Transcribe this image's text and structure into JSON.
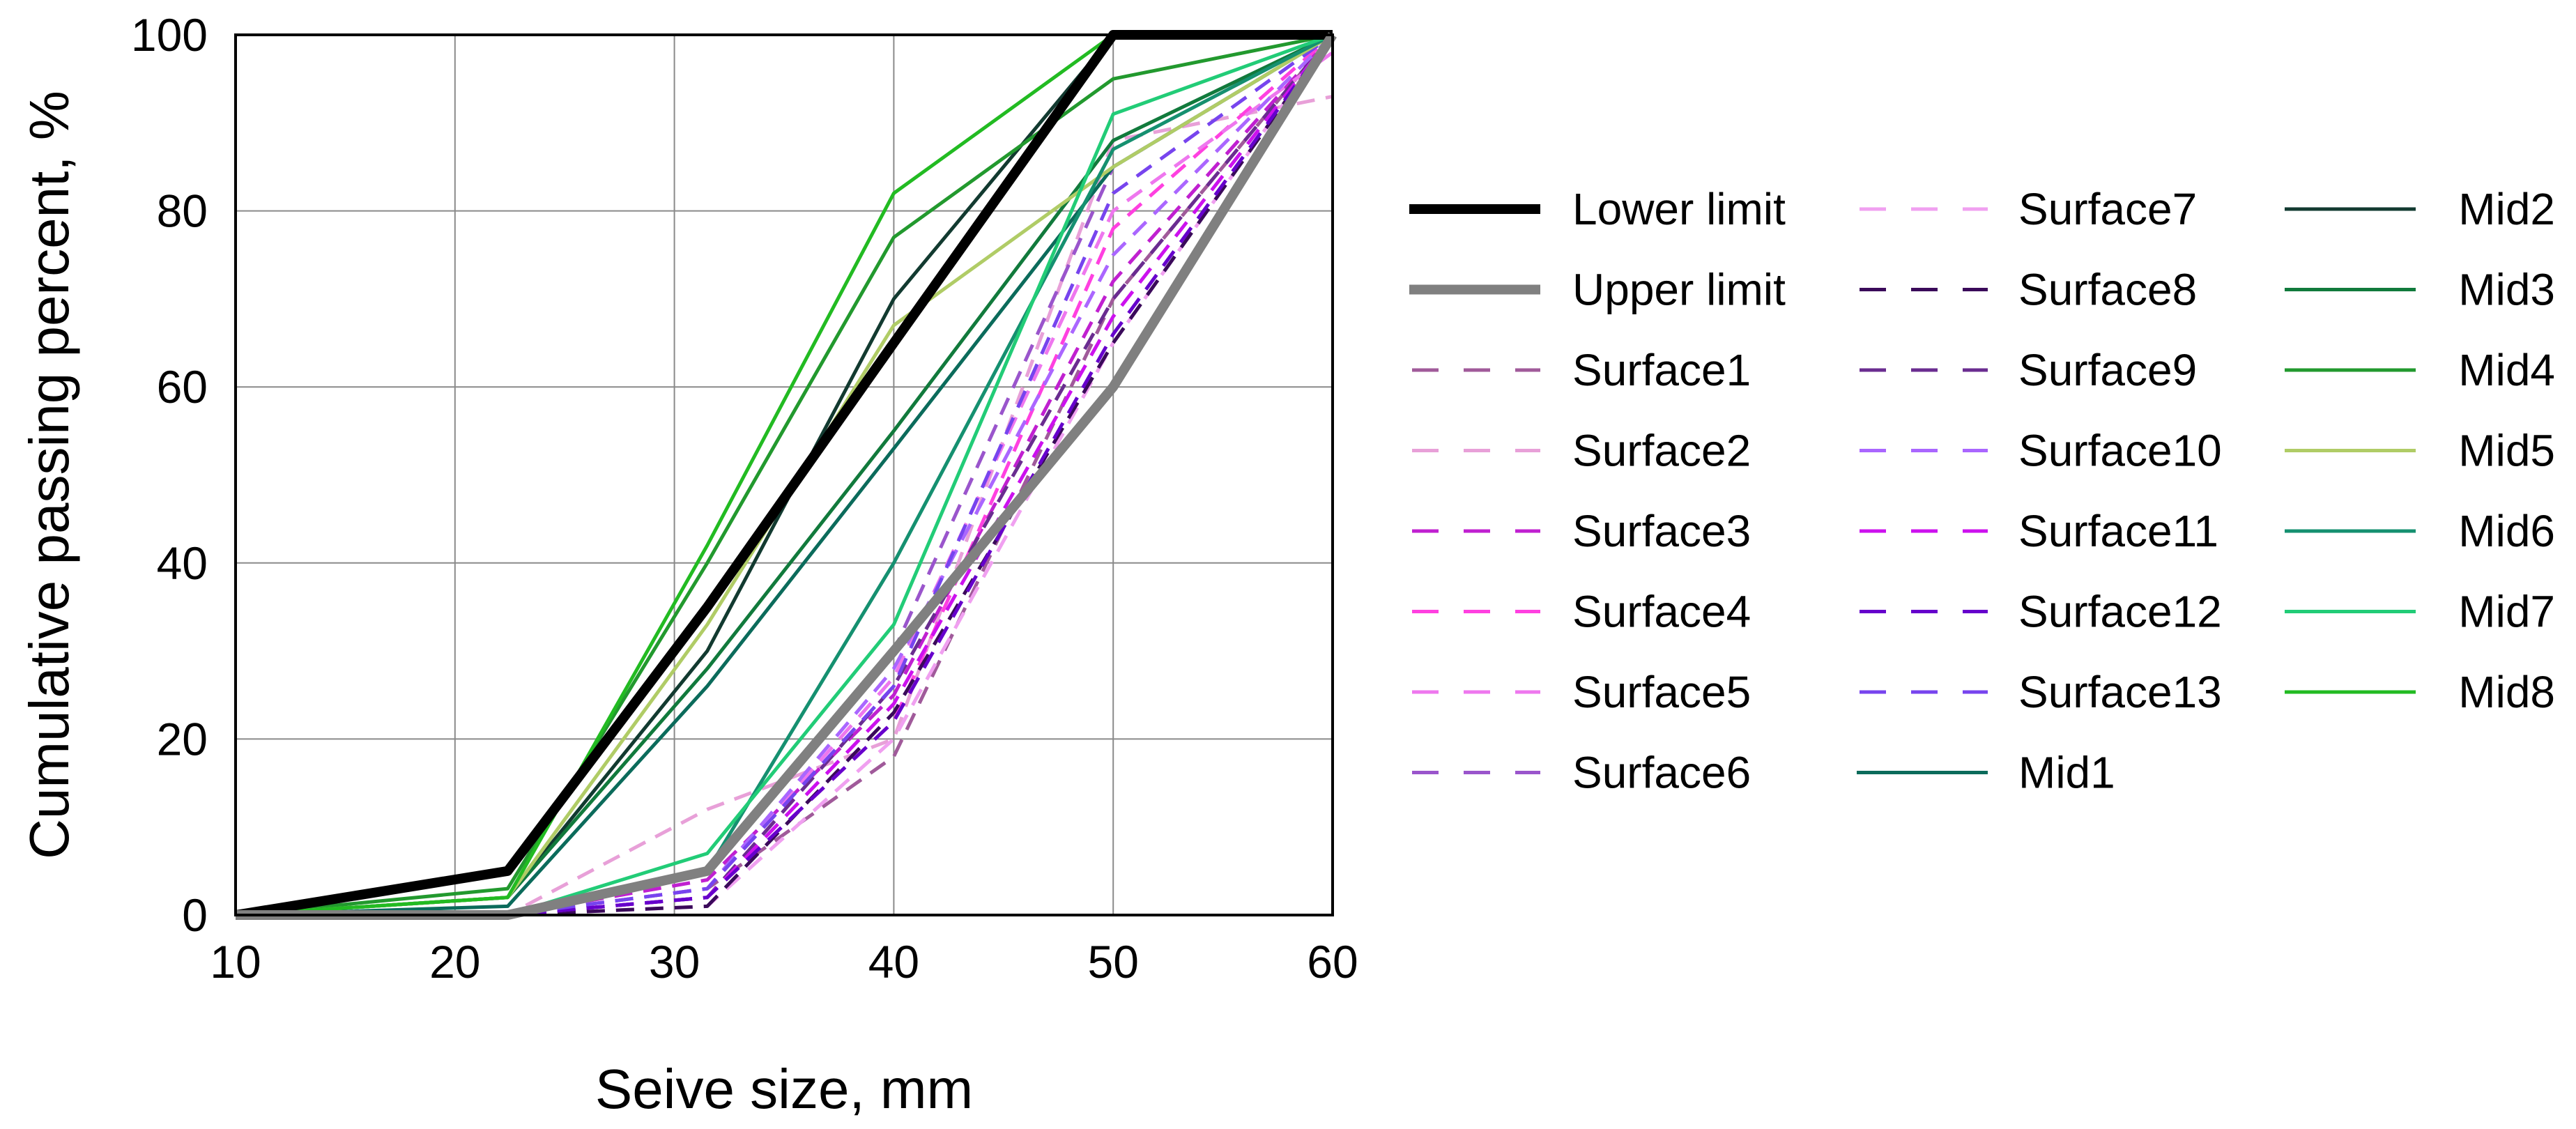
{
  "chart_data": {
    "type": "line",
    "title": "",
    "xlabel": "Seive size, mm",
    "ylabel": "Cumulative passing percent, %",
    "xlim": [
      10,
      60
    ],
    "ylim": [
      0,
      100
    ],
    "xticks": [
      10,
      20,
      30,
      40,
      50,
      60
    ],
    "yticks": [
      0,
      20,
      40,
      60,
      80,
      100
    ],
    "grid": true,
    "legend_position": "right",
    "x": [
      10,
      22.4,
      31.5,
      40,
      50,
      60
    ],
    "series": [
      {
        "name": "Lower limit",
        "color": "#000000",
        "style": "solid",
        "weight": "heavy",
        "values": [
          0,
          5,
          35,
          65,
          100,
          100
        ]
      },
      {
        "name": "Upper limit",
        "color": "#808080",
        "style": "solid",
        "weight": "heavy",
        "values": [
          0,
          0,
          5,
          30,
          60,
          100
        ]
      },
      {
        "name": "Surface1",
        "color": "#a05a9a",
        "style": "dashed",
        "weight": "normal",
        "values": [
          0,
          0,
          3,
          18,
          70,
          100
        ]
      },
      {
        "name": "Surface2",
        "color": "#e8a0d8",
        "style": "dashed",
        "weight": "normal",
        "values": [
          0,
          0,
          12,
          20,
          88,
          93
        ]
      },
      {
        "name": "Surface3",
        "color": "#c020d0",
        "style": "dashed",
        "weight": "normal",
        "values": [
          0,
          0,
          4,
          25,
          72,
          100
        ]
      },
      {
        "name": "Surface4",
        "color": "#ff40e0",
        "style": "dashed",
        "weight": "normal",
        "values": [
          0,
          0,
          2,
          22,
          78,
          100
        ]
      },
      {
        "name": "Surface5",
        "color": "#ee77ee",
        "style": "dashed",
        "weight": "normal",
        "values": [
          0,
          0,
          3,
          27,
          80,
          98
        ]
      },
      {
        "name": "Surface6",
        "color": "#9a55cc",
        "style": "dashed",
        "weight": "normal",
        "values": [
          0,
          0,
          5,
          30,
          85,
          100
        ]
      },
      {
        "name": "Surface7",
        "color": "#f0a0f0",
        "style": "dashed",
        "weight": "normal",
        "values": [
          0,
          0,
          1,
          20,
          65,
          100
        ]
      },
      {
        "name": "Surface8",
        "color": "#3a0a5a",
        "style": "dashed",
        "weight": "normal",
        "values": [
          0,
          0,
          1,
          23,
          65,
          100
        ]
      },
      {
        "name": "Surface9",
        "color": "#6a2c90",
        "style": "dashed",
        "weight": "normal",
        "values": [
          0,
          0,
          2,
          26,
          70,
          100
        ]
      },
      {
        "name": "Surface10",
        "color": "#aa66ff",
        "style": "dashed",
        "weight": "normal",
        "values": [
          0,
          0,
          3,
          28,
          75,
          100
        ]
      },
      {
        "name": "Surface11",
        "color": "#cc11ee",
        "style": "dashed",
        "weight": "normal",
        "values": [
          0,
          0,
          2,
          24,
          68,
          100
        ]
      },
      {
        "name": "Surface12",
        "color": "#6600cc",
        "style": "dashed",
        "weight": "normal",
        "values": [
          0,
          0,
          2,
          22,
          66,
          100
        ]
      },
      {
        "name": "Surface13",
        "color": "#7744ee",
        "style": "dashed",
        "weight": "normal",
        "values": [
          0,
          0,
          3,
          26,
          82,
          100
        ]
      },
      {
        "name": "Mid1",
        "color": "#0b6b5b",
        "style": "solid",
        "weight": "normal",
        "values": [
          0,
          1,
          26,
          53,
          85,
          100
        ]
      },
      {
        "name": "Mid2",
        "color": "#123a30",
        "style": "solid",
        "weight": "normal",
        "values": [
          0,
          2,
          30,
          70,
          100,
          100
        ]
      },
      {
        "name": "Mid3",
        "color": "#117a3c",
        "style": "solid",
        "weight": "normal",
        "values": [
          0,
          2,
          28,
          55,
          88,
          100
        ]
      },
      {
        "name": "Mid4",
        "color": "#22992e",
        "style": "solid",
        "weight": "normal",
        "values": [
          0,
          3,
          40,
          77,
          95,
          100
        ]
      },
      {
        "name": "Mid5",
        "color": "#b0cc66",
        "style": "solid",
        "weight": "normal",
        "values": [
          0,
          2,
          33,
          67,
          85,
          100
        ]
      },
      {
        "name": "Mid6",
        "color": "#159070",
        "style": "solid",
        "weight": "normal",
        "values": [
          0,
          0,
          5,
          40,
          87,
          100
        ]
      },
      {
        "name": "Mid7",
        "color": "#22cc77",
        "style": "solid",
        "weight": "normal",
        "values": [
          0,
          0,
          7,
          33,
          91,
          100
        ]
      },
      {
        "name": "Mid8",
        "color": "#22bb22",
        "style": "solid",
        "weight": "normal",
        "values": [
          0,
          2,
          42,
          82,
          100,
          100
        ]
      }
    ]
  }
}
